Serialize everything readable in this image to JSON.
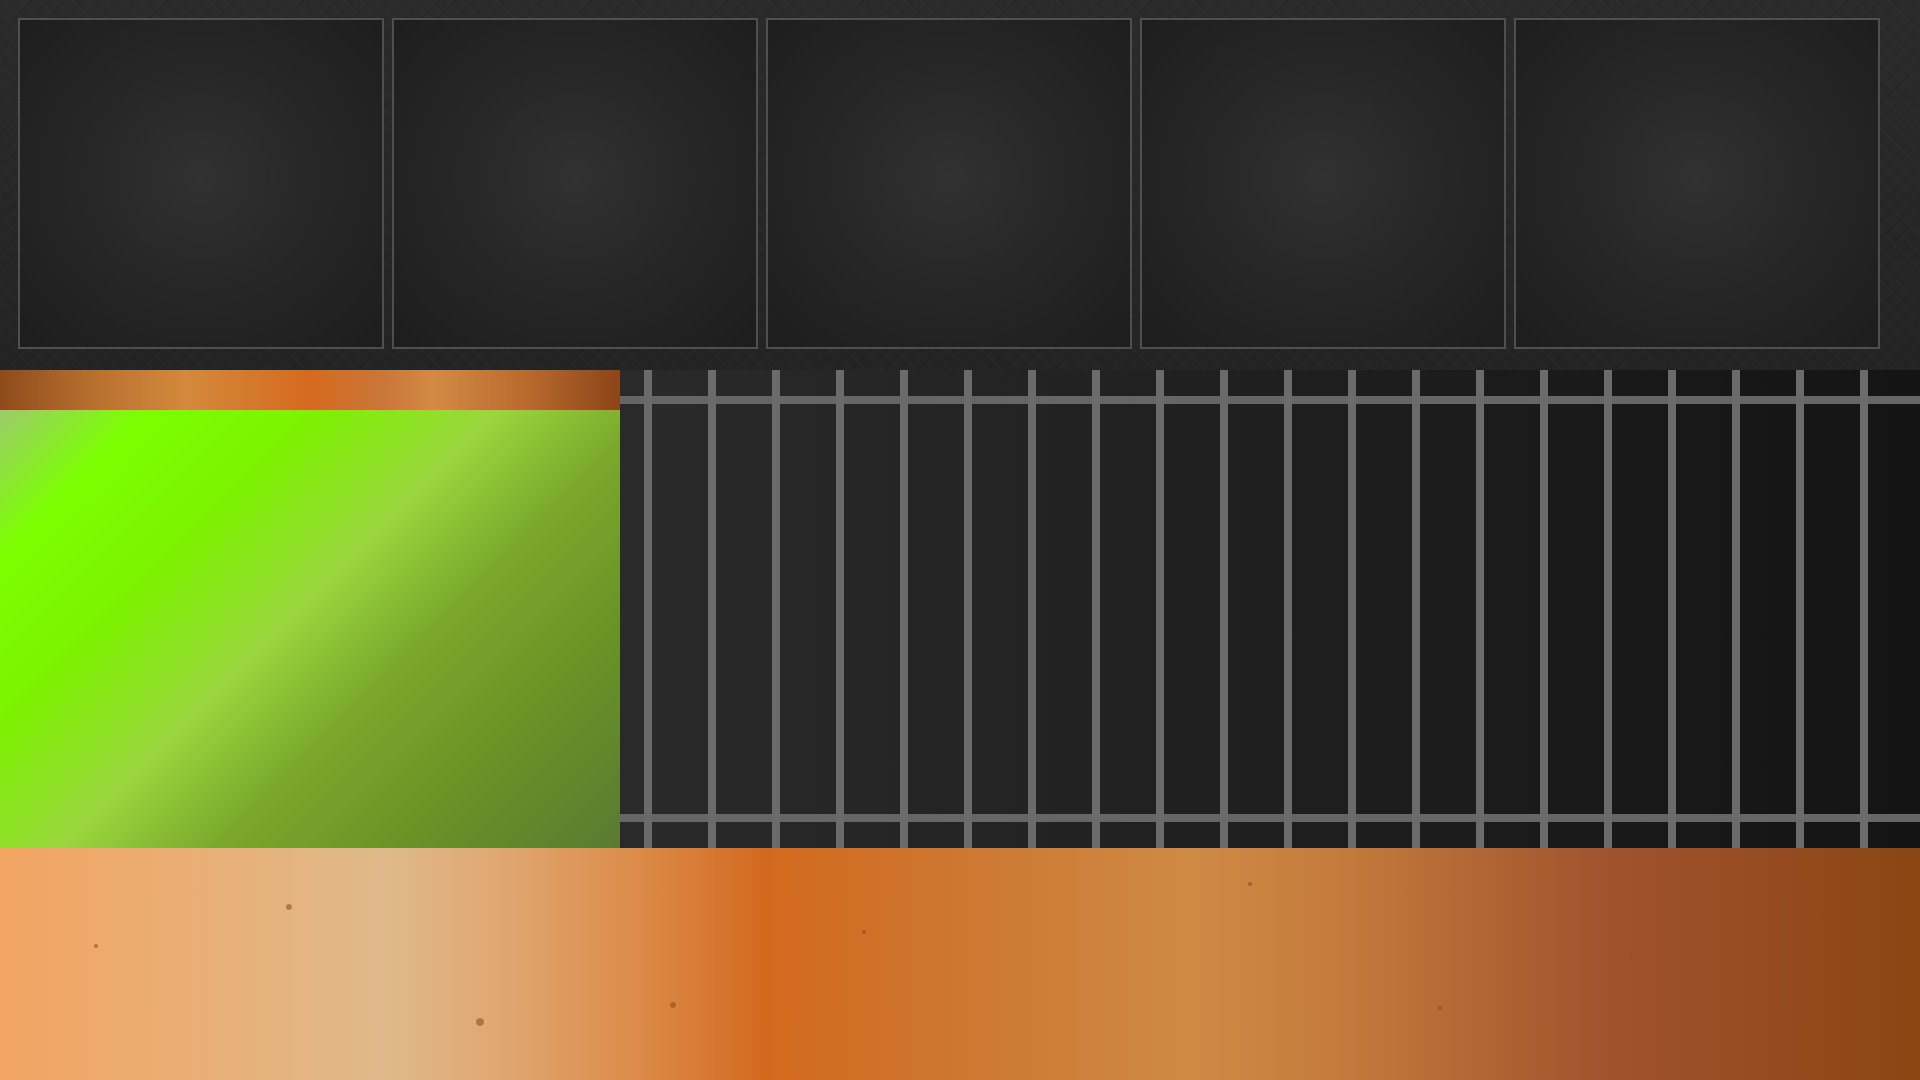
{
  "inventory": {
    "slots": [
      {
        "id": 1,
        "item": ""
      },
      {
        "id": 2,
        "item": ""
      },
      {
        "id": 3,
        "item": ""
      },
      {
        "id": 4,
        "item": ""
      },
      {
        "id": 5,
        "item": ""
      }
    ]
  },
  "scene": {
    "slime_pen": {
      "contents": "green slime"
    },
    "cage": {
      "bars": 20
    },
    "ground": {
      "pebbles": 9
    }
  },
  "colors": {
    "panel_bg": "#262626",
    "slot_border": "#4f4f4f",
    "slime_green": "#7cff00",
    "cage_bar": "#6b6b6b",
    "ground_light": "#f2a461",
    "ground_dark": "#8b4513"
  }
}
